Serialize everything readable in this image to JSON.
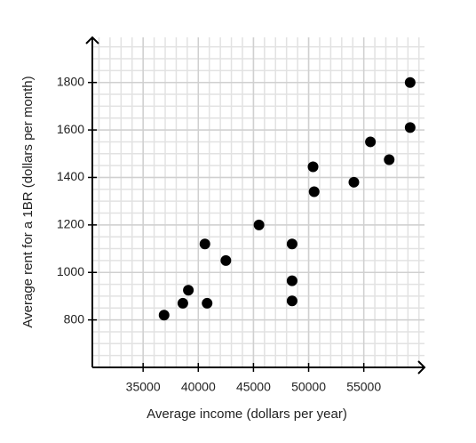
{
  "chart_data": {
    "type": "scatter",
    "x_label": "Average income (dollars per year)",
    "y_label": "Average rent for a 1BR (dollars per month)",
    "x": [
      36900,
      38600,
      39100,
      40600,
      40800,
      42500,
      45500,
      48500,
      48500,
      48500,
      50400,
      50500,
      54100,
      55600,
      57300,
      59200,
      59200
    ],
    "values": [
      820,
      870,
      925,
      1120,
      870,
      1050,
      1200,
      1120,
      965,
      880,
      1445,
      1340,
      1380,
      1550,
      1475,
      1610,
      1800
    ],
    "color": "#000000",
    "xlim": [
      30400,
      60500
    ],
    "ylim": [
      600,
      1990
    ],
    "xticks": [
      35000,
      40000,
      45000,
      50000,
      55000
    ],
    "yticks": [
      800,
      1000,
      1200,
      1400,
      1600,
      1800
    ],
    "grid": true,
    "x_minor_step": 1000,
    "y_minor_step": 50
  }
}
